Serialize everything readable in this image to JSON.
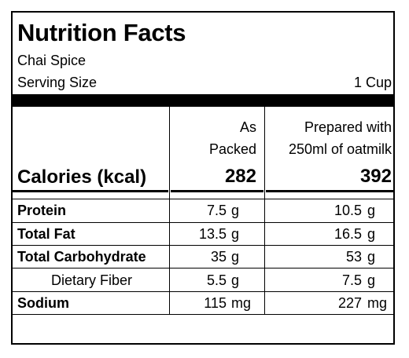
{
  "title": "Nutrition Facts",
  "product": "Chai Spice",
  "serving": {
    "label": "Serving Size",
    "value": "1 Cup"
  },
  "columns": [
    {
      "line1": "As",
      "line2": "Packed"
    },
    {
      "line1": "Prepared with",
      "line2": "250ml of oatmilk"
    }
  ],
  "calories": {
    "label": "Calories (kcal)",
    "packed": "282",
    "prepared": "392"
  },
  "nutrients": [
    {
      "label": "Protein",
      "packed": "7.5",
      "prepared": "10.5",
      "unit": "g"
    },
    {
      "label": "Total Fat",
      "packed": "13.5",
      "prepared": "16.5",
      "unit": "g"
    },
    {
      "label": "Total Carbohydrate",
      "packed": "35",
      "prepared": "53",
      "unit": "g"
    },
    {
      "label": "Dietary Fiber",
      "packed": "5.5",
      "prepared": "7.5",
      "unit": "g"
    },
    {
      "label": "Sodium",
      "packed": "115",
      "prepared": "227",
      "unit": "mg"
    }
  ]
}
